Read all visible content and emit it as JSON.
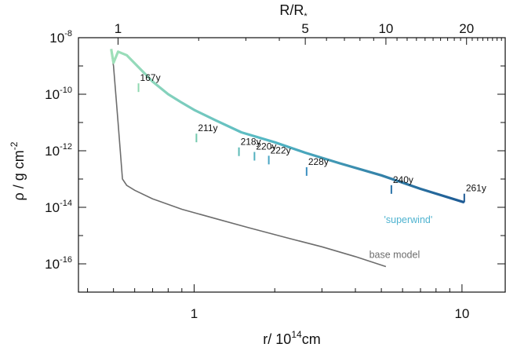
{
  "chart_data": {
    "type": "line",
    "title": "",
    "xlabel": {
      "base": "r/ 10",
      "sup": "14",
      "unit": "cm"
    },
    "ylabel": {
      "base": "ρ / g cm",
      "sup": "-2"
    },
    "top_xlabel": {
      "base": "R/R",
      "sub": "*"
    },
    "x_scale": "log",
    "y_scale": "log",
    "xlim": [
      0.37,
      14.5
    ],
    "ylim": [
      1e-17,
      1e-08
    ],
    "bottom_ticks": [
      {
        "value": 1,
        "label": "1"
      },
      {
        "value": 10,
        "label": "10"
      }
    ],
    "top_ticks": [
      {
        "value": 0.52,
        "label": "1"
      },
      {
        "value": 2.6,
        "label": "5"
      },
      {
        "value": 5.2,
        "label": "10"
      },
      {
        "value": 10.4,
        "label": "20"
      }
    ],
    "y_ticks": [
      {
        "value": 1e-08,
        "base": "10",
        "exp": "-8"
      },
      {
        "value": 1e-10,
        "base": "10",
        "exp": "-10"
      },
      {
        "value": 1e-12,
        "base": "10",
        "exp": "-12"
      },
      {
        "value": 1e-14,
        "base": "10",
        "exp": "-14"
      },
      {
        "value": 1e-16,
        "base": "10",
        "exp": "-16"
      }
    ],
    "series": [
      {
        "name": "'superwind'",
        "color_start": "#9fe0b8",
        "color_end": "#1d5a94",
        "label_x": 6.3,
        "label_y": 2.8e-15,
        "x": [
          0.49,
          0.5,
          0.52,
          0.56,
          0.62,
          0.7,
          0.8,
          0.9,
          1.0,
          1.2,
          1.5,
          2.0,
          2.6,
          3.5,
          5.0,
          7.0,
          10.2
        ],
        "y": [
          4e-09,
          1.3e-09,
          3.2e-09,
          2.4e-09,
          9e-10,
          2.8e-10,
          1e-10,
          5e-11,
          2.8e-11,
          1.2e-11,
          4.5e-12,
          2e-12,
          8.5e-13,
          3.6e-13,
          1.35e-13,
          4.5e-14,
          1.5e-14
        ]
      },
      {
        "name": "base model",
        "color": "#6d6d6d",
        "label_x": 5.6,
        "label_y": 1.6e-16,
        "x": [
          0.49,
          0.5,
          0.51,
          0.52,
          0.53,
          0.54,
          0.56,
          0.6,
          0.7,
          0.9,
          1.2,
          1.6,
          2.2,
          3.0,
          4.0,
          5.2
        ],
        "y": [
          3.2e-09,
          1e-09,
          1e-10,
          1e-11,
          1e-12,
          1e-13,
          6e-14,
          4e-14,
          2e-14,
          8.5e-15,
          4e-15,
          1.9e-15,
          8.5e-16,
          4e-16,
          1.8e-16,
          8e-17
        ]
      }
    ],
    "annotations": [
      {
        "label": "167y",
        "x": 0.62,
        "y": 1.2e-10
      },
      {
        "label": "211y",
        "x": 1.02,
        "y": 2e-12
      },
      {
        "label": "218y",
        "x": 1.47,
        "y": 6.5e-13
      },
      {
        "label": "220y",
        "x": 1.68,
        "y": 4.5e-13
      },
      {
        "label": "222y",
        "x": 1.9,
        "y": 3.3e-13
      },
      {
        "label": "228y",
        "x": 2.63,
        "y": 1.3e-13
      },
      {
        "label": "240y",
        "x": 5.45,
        "y": 3e-14
      },
      {
        "label": "261y",
        "x": 10.2,
        "y": 1.5e-14
      }
    ],
    "grid": false,
    "legend": "none"
  }
}
